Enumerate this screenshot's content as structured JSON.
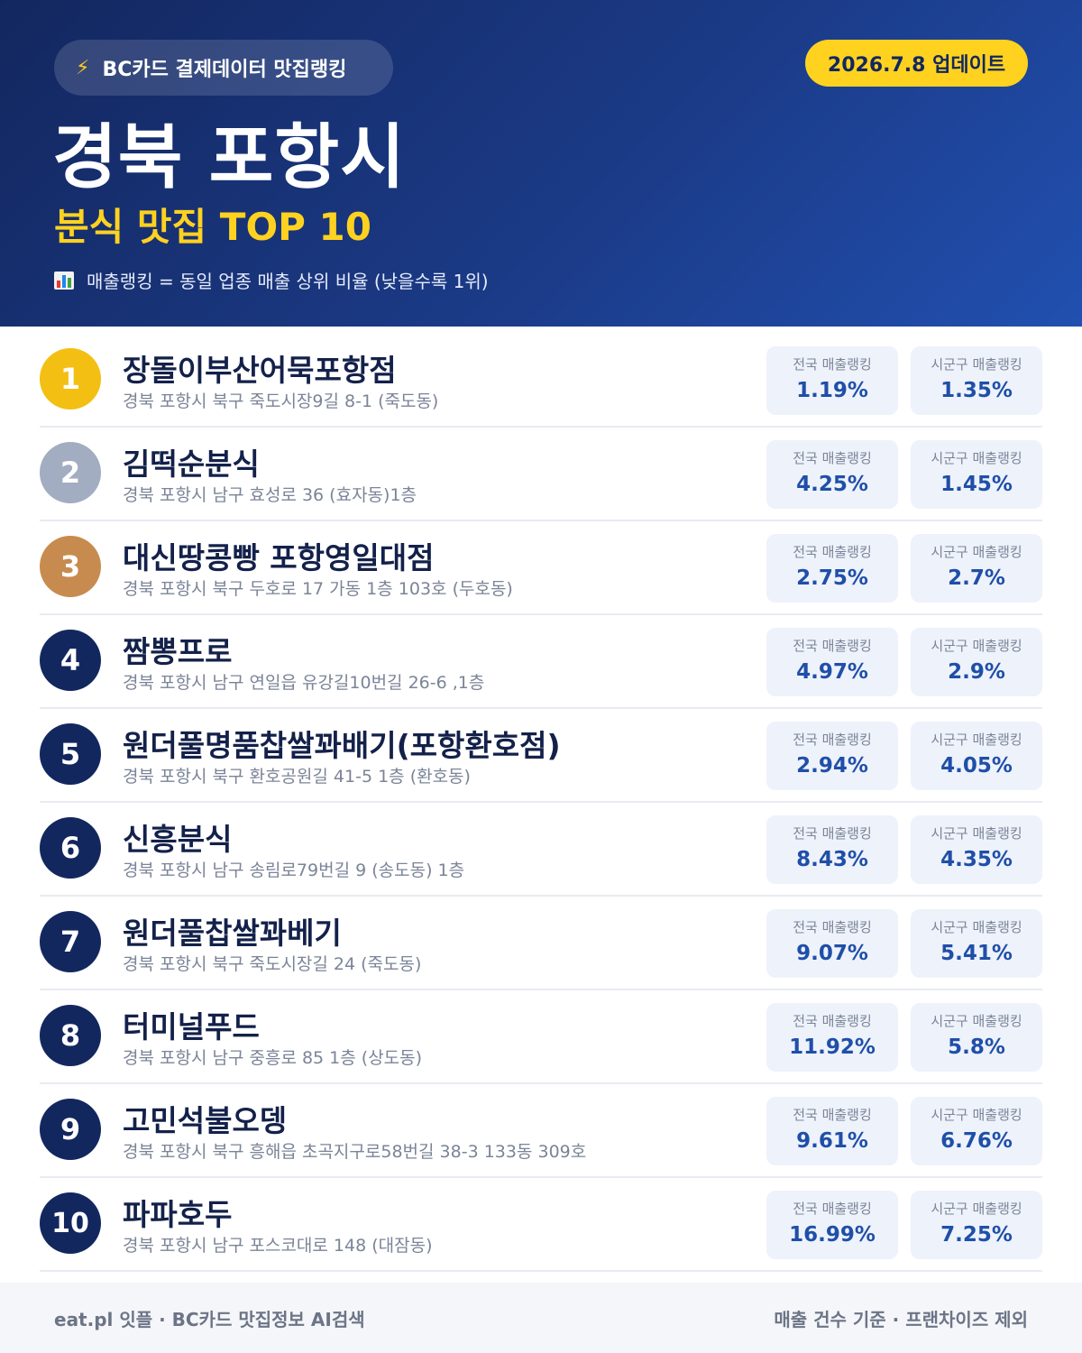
{
  "header": {
    "brand": "BC카드 결제데이터 맛집랭킹",
    "brand_icon": "lightning-bolt-icon",
    "update": "2026.7.8 업데이트",
    "region": "경북 포항시",
    "category": "분식 맛집 TOP 10",
    "note": "매출랭킹 = 동일 업종 매출 상위 비율 (낮을수록 1위)",
    "note_icon": "bar-chart-icon"
  },
  "labels": {
    "national": "전국 매출랭킹",
    "local": "시군구 매출랭킹"
  },
  "restaurants": [
    {
      "rank": "1",
      "name": "장돌이부산어묵포항점",
      "address": "경북 포항시 북구 죽도시장9길 8-1 (죽도동)",
      "national": "1.19%",
      "local": "1.35%"
    },
    {
      "rank": "2",
      "name": "김떡순분식",
      "address": "경북 포항시 남구 효성로 36 (효자동)1층",
      "national": "4.25%",
      "local": "1.45%"
    },
    {
      "rank": "3",
      "name": "대신땅콩빵 포항영일대점",
      "address": "경북 포항시 북구 두호로 17 가동 1층 103호 (두호동)",
      "national": "2.75%",
      "local": "2.7%"
    },
    {
      "rank": "4",
      "name": "짬뽕프로",
      "address": "경북 포항시 남구 연일읍 유강길10번길 26-6 ,1층",
      "national": "4.97%",
      "local": "2.9%"
    },
    {
      "rank": "5",
      "name": "원더풀명품찹쌀꽈배기(포항환호점)",
      "address": "경북 포항시 북구 환호공원길 41-5 1층 (환호동)",
      "national": "2.94%",
      "local": "4.05%"
    },
    {
      "rank": "6",
      "name": "신흥분식",
      "address": "경북 포항시 남구 송림로79번길 9 (송도동) 1층",
      "national": "8.43%",
      "local": "4.35%"
    },
    {
      "rank": "7",
      "name": "원더풀찹쌀꽈베기",
      "address": "경북 포항시 북구 죽도시장길 24 (죽도동)",
      "national": "9.07%",
      "local": "5.41%"
    },
    {
      "rank": "8",
      "name": "터미널푸드",
      "address": "경북 포항시 남구 중흥로 85 1층 (상도동)",
      "national": "11.92%",
      "local": "5.8%"
    },
    {
      "rank": "9",
      "name": "고민석불오뎅",
      "address": "경북 포항시 북구 흥해읍 초곡지구로58번길 38-3 133동 309호",
      "national": "9.61%",
      "local": "6.76%"
    },
    {
      "rank": "10",
      "name": "파파호두",
      "address": "경북 포항시 남구 포스코대로 148 (대잠동)",
      "national": "16.99%",
      "local": "7.25%"
    }
  ],
  "footer": {
    "left": "eat.pl 잇플 · BC카드 맛집정보 AI검색",
    "right": "매출 건수 기준 · 프랜차이즈 제외"
  },
  "colors": {
    "header_dark": "#13275f",
    "accent_yellow": "#ffd21f",
    "gold": "#f3bf12",
    "silver": "#a2adc1",
    "bronze": "#c88b4f",
    "value_blue": "#1f4fa8"
  }
}
